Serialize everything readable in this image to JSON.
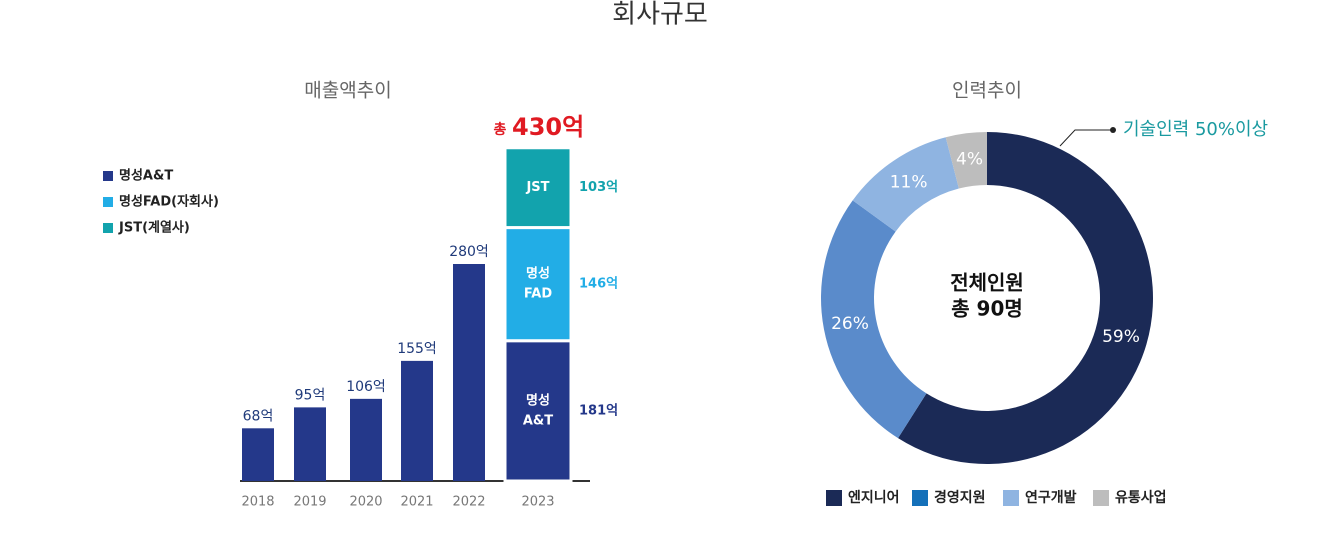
{
  "title": "회사규모",
  "chart_data": [
    {
      "type": "bar",
      "title": "매출액추이",
      "categories": [
        "2018",
        "2019",
        "2020",
        "2021",
        "2022",
        "2023"
      ],
      "series": [
        {
          "name": "명성A&T",
          "color": "#24388a",
          "values": [
            68,
            95,
            106,
            155,
            280,
            181
          ],
          "value_labels": [
            "68억",
            "95억",
            "106억",
            "155억",
            "280억",
            "181억"
          ],
          "segment_label": [
            "명성",
            "A&T"
          ]
        },
        {
          "name": "명성FAD(자회사)",
          "color": "#22ade6",
          "values": [
            null,
            null,
            null,
            null,
            null,
            146
          ],
          "value_labels": [
            null,
            null,
            null,
            null,
            null,
            "146억"
          ],
          "segment_label": [
            "명성",
            "FAD"
          ]
        },
        {
          "name": "JST(계열사)",
          "color": "#12a3ad",
          "values": [
            null,
            null,
            null,
            null,
            null,
            103
          ],
          "value_labels": [
            null,
            null,
            null,
            null,
            null,
            "103억"
          ],
          "segment_label": [
            "JST"
          ]
        }
      ],
      "stacked": true,
      "annotation_prefix": "총",
      "annotation": "430억",
      "ylim": [
        0,
        440
      ]
    },
    {
      "type": "donut",
      "title": "인력추이",
      "categories": [
        "엔지니어",
        "경영지원",
        "연구개발",
        "유통사업"
      ],
      "values": [
        59,
        26,
        11,
        4
      ],
      "value_labels": [
        "59%",
        "26%",
        "11%",
        "4%"
      ],
      "colors": [
        "#1b2a56",
        "#5a8bcb",
        "#8fb4e1",
        "#bdbdbd"
      ],
      "legend_colors": [
        "#1b2a56",
        "#1470b9",
        "#8fb4e1",
        "#bdbdbd"
      ],
      "center_text": [
        "전체인원",
        "총 90명"
      ],
      "annotation": "기술인력 50%이상"
    }
  ]
}
